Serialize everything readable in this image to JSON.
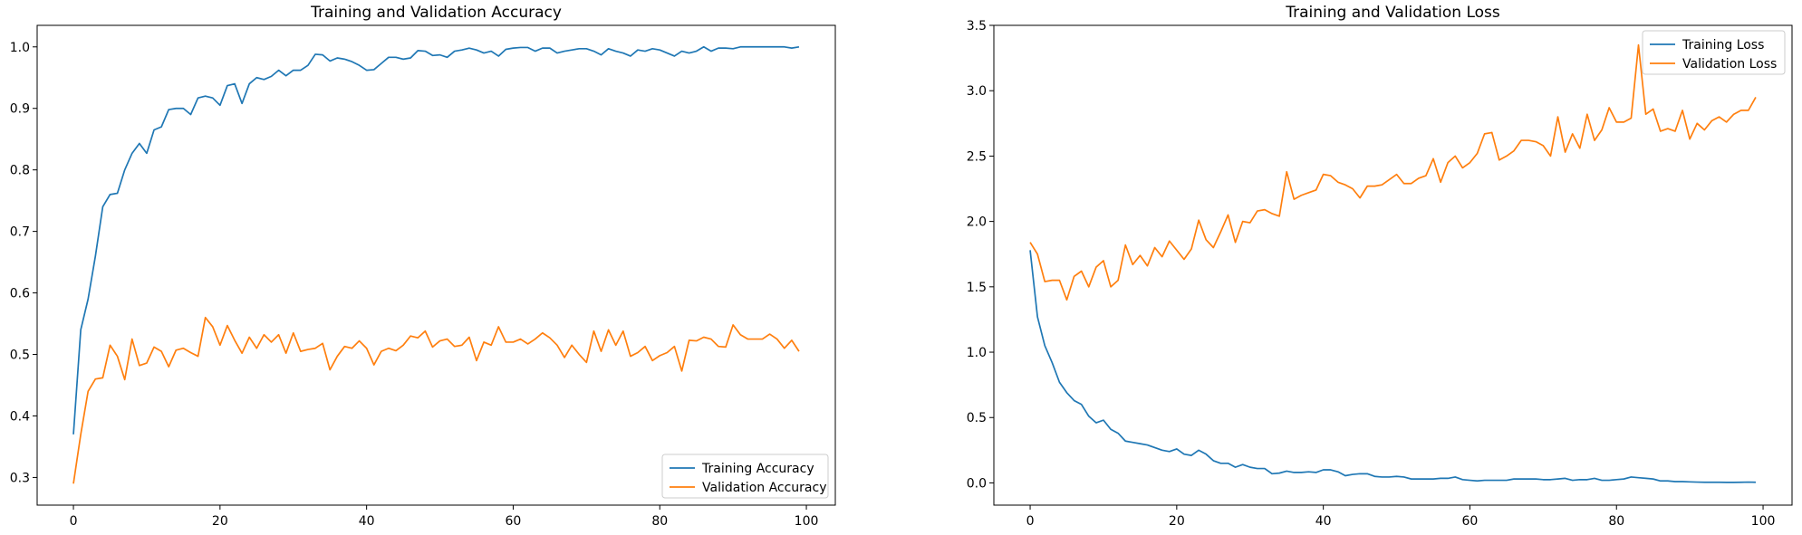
{
  "chart_data": [
    {
      "type": "line",
      "title": "Training and Validation Accuracy",
      "xlabel": "",
      "ylabel": "",
      "xlim": [
        -4.95,
        103.95
      ],
      "ylim": [
        0.255,
        1.035
      ],
      "xticks": [
        0,
        20,
        40,
        60,
        80,
        100
      ],
      "yticks": [
        0.3,
        0.4,
        0.5,
        0.6,
        0.7,
        0.8,
        0.9,
        1.0
      ],
      "ytick_labels": [
        "0.3",
        "0.4",
        "0.5",
        "0.6",
        "0.7",
        "0.8",
        "0.9",
        "1.0"
      ],
      "grid": false,
      "legend_position": "lower right",
      "series": [
        {
          "name": "Training Accuracy",
          "color": "#1f77b4",
          "values": [
            0.37,
            0.54,
            0.59,
            0.66,
            0.74,
            0.76,
            0.762,
            0.8,
            0.827,
            0.843,
            0.827,
            0.865,
            0.87,
            0.898,
            0.9,
            0.9,
            0.89,
            0.917,
            0.92,
            0.917,
            0.905,
            0.937,
            0.94,
            0.908,
            0.94,
            0.95,
            0.947,
            0.952,
            0.962,
            0.953,
            0.962,
            0.962,
            0.97,
            0.988,
            0.987,
            0.977,
            0.982,
            0.98,
            0.976,
            0.97,
            0.962,
            0.963,
            0.973,
            0.983,
            0.983,
            0.98,
            0.982,
            0.994,
            0.993,
            0.986,
            0.987,
            0.983,
            0.993,
            0.995,
            0.998,
            0.995,
            0.99,
            0.993,
            0.985,
            0.996,
            0.998,
            0.999,
            0.999,
            0.993,
            0.998,
            0.998,
            0.99,
            0.993,
            0.995,
            0.997,
            0.997,
            0.993,
            0.987,
            0.997,
            0.993,
            0.99,
            0.985,
            0.995,
            0.993,
            0.997,
            0.995,
            0.99,
            0.985,
            0.993,
            0.99,
            0.993,
            1.0,
            0.993,
            0.998,
            0.998,
            0.997,
            1.0,
            1.0,
            1.0,
            1.0,
            1.0,
            1.0,
            1.0,
            0.998,
            1.0
          ]
        },
        {
          "name": "Validation Accuracy",
          "color": "#ff7f0e",
          "values": [
            0.29,
            0.37,
            0.44,
            0.46,
            0.462,
            0.515,
            0.497,
            0.459,
            0.525,
            0.482,
            0.486,
            0.512,
            0.505,
            0.48,
            0.507,
            0.51,
            0.503,
            0.497,
            0.56,
            0.545,
            0.515,
            0.547,
            0.523,
            0.502,
            0.528,
            0.51,
            0.532,
            0.52,
            0.532,
            0.502,
            0.535,
            0.505,
            0.508,
            0.51,
            0.518,
            0.475,
            0.497,
            0.513,
            0.51,
            0.522,
            0.51,
            0.483,
            0.505,
            0.51,
            0.506,
            0.515,
            0.53,
            0.527,
            0.538,
            0.512,
            0.522,
            0.525,
            0.513,
            0.515,
            0.528,
            0.49,
            0.52,
            0.515,
            0.545,
            0.52,
            0.52,
            0.525,
            0.517,
            0.525,
            0.535,
            0.527,
            0.515,
            0.495,
            0.515,
            0.5,
            0.487,
            0.538,
            0.505,
            0.54,
            0.515,
            0.538,
            0.497,
            0.503,
            0.513,
            0.49,
            0.498,
            0.503,
            0.513,
            0.473,
            0.523,
            0.522,
            0.528,
            0.525,
            0.513,
            0.512,
            0.548,
            0.532,
            0.525,
            0.525,
            0.525,
            0.533,
            0.525,
            0.51,
            0.523,
            0.505
          ]
        }
      ]
    },
    {
      "type": "line",
      "title": "Training and Validation Loss",
      "xlabel": "",
      "ylabel": "",
      "xlim": [
        -4.95,
        103.95
      ],
      "ylim": [
        -0.17,
        3.5
      ],
      "xticks": [
        0,
        20,
        40,
        60,
        80,
        100
      ],
      "yticks": [
        0.0,
        0.5,
        1.0,
        1.5,
        2.0,
        2.5,
        3.0,
        3.5
      ],
      "ytick_labels": [
        "0.0",
        "0.5",
        "1.0",
        "1.5",
        "2.0",
        "2.5",
        "3.0",
        "3.5"
      ],
      "grid": false,
      "legend_position": "upper right",
      "series": [
        {
          "name": "Training Loss",
          "color": "#1f77b4",
          "values": [
            1.78,
            1.27,
            1.05,
            0.92,
            0.77,
            0.69,
            0.63,
            0.6,
            0.51,
            0.46,
            0.48,
            0.41,
            0.38,
            0.32,
            0.31,
            0.3,
            0.29,
            0.27,
            0.25,
            0.24,
            0.26,
            0.22,
            0.21,
            0.25,
            0.22,
            0.17,
            0.15,
            0.15,
            0.12,
            0.14,
            0.12,
            0.11,
            0.11,
            0.07,
            0.075,
            0.09,
            0.08,
            0.08,
            0.085,
            0.08,
            0.1,
            0.1,
            0.085,
            0.055,
            0.065,
            0.07,
            0.07,
            0.05,
            0.045,
            0.045,
            0.05,
            0.045,
            0.03,
            0.03,
            0.03,
            0.03,
            0.035,
            0.035,
            0.045,
            0.025,
            0.02,
            0.015,
            0.02,
            0.02,
            0.02,
            0.02,
            0.03,
            0.03,
            0.03,
            0.03,
            0.025,
            0.025,
            0.03,
            0.035,
            0.02,
            0.025,
            0.025,
            0.035,
            0.02,
            0.02,
            0.025,
            0.03,
            0.045,
            0.04,
            0.035,
            0.03,
            0.015,
            0.015,
            0.01,
            0.01,
            0.008,
            0.006,
            0.005,
            0.005,
            0.005,
            0.004,
            0.004,
            0.005,
            0.006,
            0.005
          ]
        },
        {
          "name": "Validation Loss",
          "color": "#ff7f0e",
          "values": [
            1.84,
            1.75,
            1.54,
            1.55,
            1.55,
            1.4,
            1.58,
            1.62,
            1.5,
            1.65,
            1.7,
            1.5,
            1.55,
            1.82,
            1.67,
            1.74,
            1.66,
            1.8,
            1.73,
            1.85,
            1.78,
            1.71,
            1.79,
            2.01,
            1.86,
            1.8,
            1.92,
            2.05,
            1.84,
            2.0,
            1.99,
            2.08,
            2.09,
            2.06,
            2.04,
            2.38,
            2.17,
            2.2,
            2.22,
            2.24,
            2.36,
            2.35,
            2.3,
            2.28,
            2.25,
            2.18,
            2.27,
            2.27,
            2.28,
            2.32,
            2.36,
            2.29,
            2.29,
            2.33,
            2.35,
            2.48,
            2.3,
            2.45,
            2.5,
            2.41,
            2.45,
            2.52,
            2.67,
            2.68,
            2.47,
            2.5,
            2.54,
            2.62,
            2.62,
            2.61,
            2.58,
            2.5,
            2.8,
            2.53,
            2.67,
            2.56,
            2.82,
            2.62,
            2.7,
            2.87,
            2.76,
            2.76,
            2.79,
            3.35,
            2.82,
            2.86,
            2.69,
            2.71,
            2.69,
            2.85,
            2.63,
            2.75,
            2.7,
            2.77,
            2.8,
            2.76,
            2.82,
            2.85,
            2.85,
            2.95
          ]
        }
      ]
    }
  ]
}
